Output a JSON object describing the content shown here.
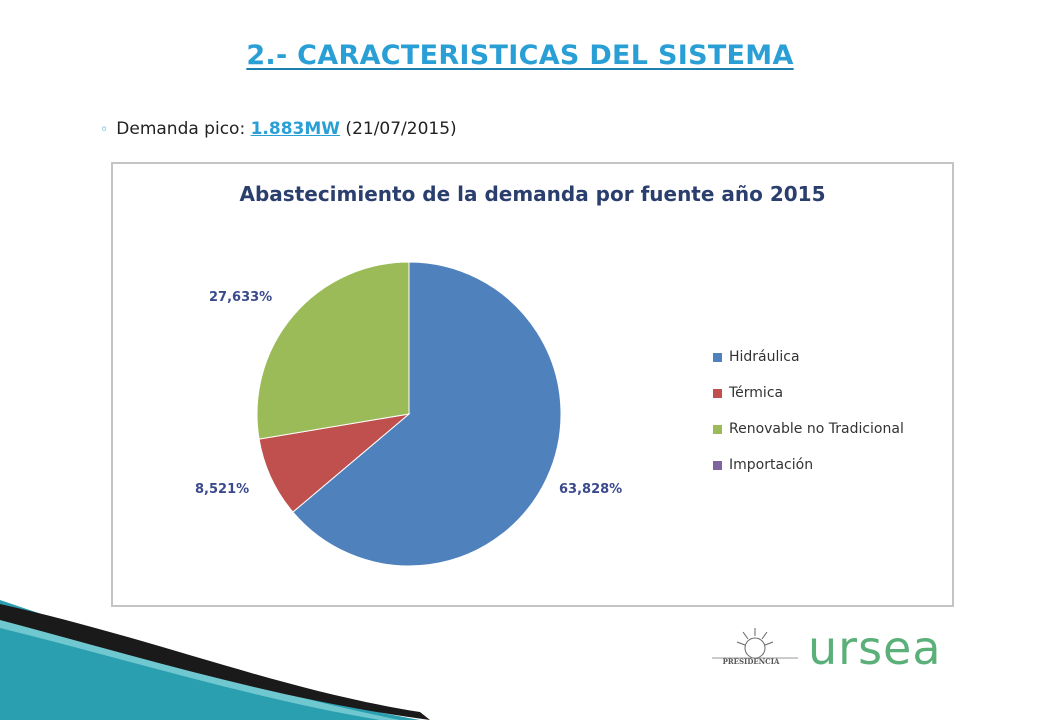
{
  "slide": {
    "title": "2.- CARACTERISTICAS DEL SISTEMA",
    "bullet_label": "Demanda pico: ",
    "peak_value": "1.883MW",
    "peak_date": " (21/07/2015)"
  },
  "chart_data": {
    "type": "pie",
    "title": "Abastecimiento de la demanda por fuente año 2015",
    "slices": [
      {
        "name": "Hidráulica",
        "value": 63.828,
        "label": "63,828%",
        "color": "#4f81bd"
      },
      {
        "name": "Térmica",
        "value": 8.521,
        "label": "8,521%",
        "color": "#c0504d"
      },
      {
        "name": "Renovable no Tradicional",
        "value": 27.633,
        "label": "27,633%",
        "color": "#9bbb59"
      },
      {
        "name": "Importación",
        "value": 0,
        "label": "",
        "color": "#8064a2"
      }
    ],
    "legend_position": "right"
  },
  "logo": {
    "seal_caption": "PRESIDENCIA",
    "brand": "ursea"
  }
}
